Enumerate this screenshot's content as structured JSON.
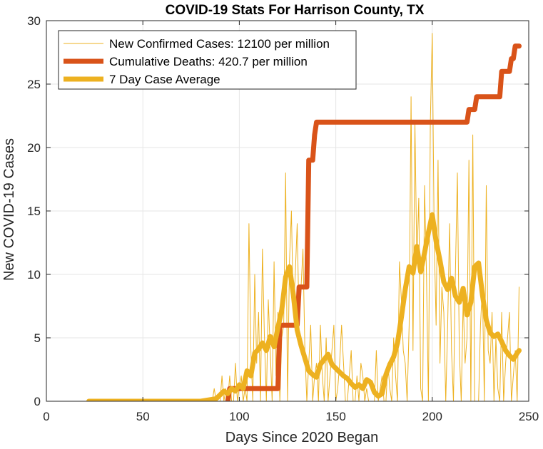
{
  "chart_data": {
    "type": "line",
    "title": "COVID-19 Stats For Harrison County, TX",
    "xlabel": "Days Since 2020 Began",
    "ylabel": "New COVID-19 Cases",
    "xlim": [
      0,
      250
    ],
    "ylim": [
      0,
      30
    ],
    "xticks": [
      0,
      50,
      100,
      150,
      200,
      250
    ],
    "yticks": [
      0,
      5,
      10,
      15,
      20,
      25,
      30
    ],
    "grid": true,
    "legend_position": "top-left",
    "series": [
      {
        "name": "New Confirmed Cases: 12100 per million",
        "color": "#EDB120",
        "style": "thin",
        "x": [
          22,
          30,
          40,
          50,
          60,
          70,
          80,
          86,
          87,
          88,
          89,
          90,
          91,
          92,
          93,
          94,
          95,
          96,
          97,
          98,
          99,
          100,
          101,
          102,
          103,
          104,
          105,
          106,
          107,
          108,
          109,
          110,
          111,
          112,
          113,
          114,
          115,
          116,
          117,
          118,
          119,
          120,
          121,
          122,
          123,
          124,
          125,
          126,
          127,
          128,
          129,
          130,
          131,
          132,
          133,
          134,
          135,
          136,
          137,
          138,
          139,
          140,
          141,
          142,
          143,
          144,
          145,
          146,
          147,
          148,
          149,
          150,
          151,
          152,
          153,
          154,
          155,
          156,
          157,
          158,
          159,
          160,
          161,
          162,
          163,
          164,
          165,
          166,
          167,
          168,
          169,
          170,
          171,
          172,
          173,
          174,
          175,
          176,
          177,
          178,
          179,
          180,
          181,
          182,
          183,
          184,
          185,
          186,
          187,
          188,
          189,
          190,
          191,
          192,
          193,
          194,
          195,
          196,
          197,
          198,
          199,
          200,
          201,
          202,
          203,
          204,
          205,
          206,
          207,
          208,
          209,
          210,
          211,
          212,
          213,
          214,
          215,
          216,
          217,
          218,
          219,
          220,
          221,
          222,
          223,
          224,
          225,
          226,
          227,
          228,
          229,
          230,
          231,
          232,
          233,
          234,
          235,
          236,
          237,
          238,
          239,
          240,
          241,
          242,
          243,
          244,
          245
        ],
        "values": [
          0,
          0,
          0,
          0,
          0,
          0,
          0,
          0,
          1,
          0,
          0,
          0,
          2,
          0,
          1,
          0,
          2,
          0,
          0,
          3,
          0,
          1,
          2,
          0,
          1,
          0,
          14,
          4,
          0,
          10,
          3,
          7,
          0,
          12,
          5,
          0,
          8,
          4,
          0,
          11,
          2,
          7,
          0,
          5,
          6,
          18,
          0,
          11,
          15,
          7,
          10,
          14,
          6,
          9,
          12,
          4,
          0,
          3,
          6,
          0,
          2,
          3,
          0,
          6,
          2,
          0,
          5,
          0,
          2,
          4,
          6,
          0,
          1,
          3,
          6,
          3,
          0,
          0,
          2,
          4,
          0,
          0,
          2,
          0,
          3,
          2,
          0,
          1,
          0,
          0,
          0,
          0,
          4,
          0,
          1,
          2,
          0,
          0,
          3,
          1,
          0,
          5,
          2,
          0,
          11,
          8,
          4,
          3,
          0,
          6,
          24,
          4,
          22,
          11,
          16,
          1,
          0,
          17,
          10,
          0,
          22,
          29,
          13,
          6,
          19,
          3,
          9,
          7,
          0,
          6,
          14,
          4,
          0,
          10,
          18,
          4,
          0,
          8,
          3,
          5,
          19,
          0,
          21,
          0,
          0,
          0,
          6,
          9,
          0,
          17,
          4,
          3,
          7,
          0,
          5,
          1,
          0,
          7,
          0,
          3,
          5,
          7,
          0,
          2,
          4,
          0,
          9
        ]
      },
      {
        "name": "Cumulative Deaths: 420.7 per million",
        "color": "#D95319",
        "style": "thick",
        "x": [
          94,
          95,
          112,
          113,
          114,
          120,
          121,
          122,
          130,
          131,
          132,
          135,
          136,
          137,
          138,
          139,
          140,
          141,
          142,
          143,
          200,
          218,
          219,
          222,
          223,
          230,
          231,
          235,
          236,
          237,
          238,
          239,
          240,
          241,
          242,
          243,
          244,
          245
        ],
        "values": [
          0,
          1,
          1,
          1,
          1,
          1,
          6,
          6,
          6,
          9,
          9,
          9,
          19,
          19,
          19,
          21,
          22,
          22,
          22,
          22,
          22,
          22,
          23,
          23,
          24,
          24,
          24,
          24,
          26,
          26,
          26,
          26,
          26,
          27,
          27,
          28,
          28,
          28
        ]
      },
      {
        "name": "7 Day Case Average",
        "color": "#EDB120",
        "style": "thick",
        "x": [
          22,
          40,
          60,
          80,
          88,
          90,
          92,
          94,
          96,
          98,
          100,
          102,
          104,
          106,
          108,
          110,
          112,
          114,
          116,
          118,
          120,
          122,
          124,
          126,
          128,
          130,
          132,
          134,
          136,
          138,
          140,
          142,
          144,
          146,
          148,
          150,
          152,
          154,
          156,
          158,
          160,
          162,
          164,
          166,
          168,
          170,
          172,
          174,
          176,
          178,
          180,
          182,
          184,
          186,
          188,
          190,
          192,
          194,
          196,
          198,
          200,
          202,
          204,
          206,
          208,
          210,
          212,
          214,
          216,
          218,
          220,
          222,
          224,
          226,
          228,
          230,
          232,
          234,
          236,
          238,
          240,
          242,
          244,
          245
        ],
        "values": [
          0,
          0,
          0,
          0,
          0.2,
          0.5,
          0.8,
          0.6,
          1.0,
          0.8,
          1.3,
          1.0,
          2.4,
          2.0,
          3.8,
          4.1,
          4.6,
          4.0,
          5.1,
          4.3,
          5.8,
          7.2,
          9.8,
          10.6,
          8.4,
          5.6,
          4.4,
          3.4,
          2.4,
          2.1,
          1.9,
          2.9,
          3.3,
          3.7,
          2.9,
          2.6,
          2.3,
          2.0,
          1.8,
          1.4,
          1.1,
          1.3,
          1.0,
          1.7,
          1.5,
          0.7,
          0.4,
          0.6,
          2.1,
          2.9,
          3.5,
          4.6,
          6.6,
          8.8,
          10.6,
          10.1,
          12.2,
          10.2,
          11.7,
          13.3,
          14.7,
          12.6,
          11.1,
          9.4,
          8.8,
          9.7,
          8.3,
          7.8,
          8.9,
          6.8,
          7.8,
          10.6,
          10.9,
          8.4,
          6.4,
          5.4,
          5.1,
          5.3,
          4.7,
          4.0,
          3.6,
          3.3,
          3.8,
          4.0
        ]
      }
    ]
  }
}
